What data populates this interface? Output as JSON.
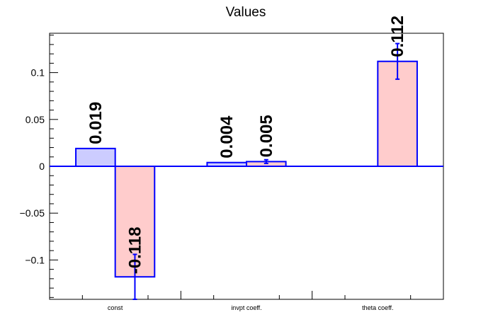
{
  "chart_data": {
    "type": "bar",
    "title": "Values",
    "xlabel": "",
    "ylabel": "",
    "categories": [
      "const",
      "invpt coeff.",
      "theta coeff."
    ],
    "ylim": [
      -0.142,
      0.142
    ],
    "yticks": [
      0.1,
      0.05,
      0,
      -0.05,
      -0.1
    ],
    "ytick_labels": [
      "0.1",
      "0.05",
      "0",
      "−0.05",
      "−0.1"
    ],
    "grid": false,
    "legend": "none",
    "series": [
      {
        "color": "#ccccff",
        "values": [
          0.019,
          0.004,
          null
        ],
        "errors": [
          null,
          null,
          null
        ],
        "labels": [
          "0.019",
          "0.004",
          ""
        ]
      },
      {
        "color": "#ffcccc",
        "values": [
          -0.118,
          0.005,
          0.112
        ],
        "errors": [
          0.024,
          0.002,
          0.019
        ],
        "labels": [
          "-0.118",
          "0.005",
          "0.112"
        ]
      }
    ],
    "colors": {
      "edge": "#0000ff",
      "axis": "#000000"
    }
  }
}
